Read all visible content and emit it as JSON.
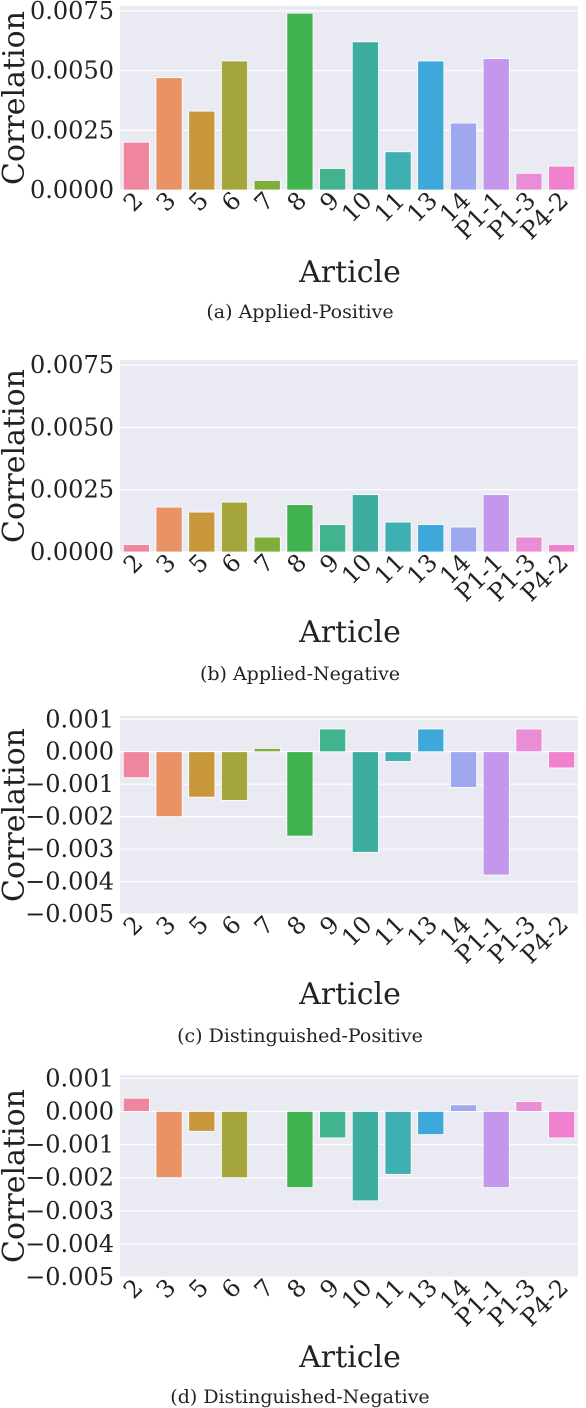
{
  "chart_data": [
    {
      "type": "bar",
      "caption": "(a) Applied-Positive",
      "xlabel": "Article",
      "ylabel": "Correlation",
      "categories": [
        "2",
        "3",
        "5",
        "6",
        "7",
        "8",
        "9",
        "10",
        "11",
        "13",
        "14",
        "P1-1",
        "P1-3",
        "P4-2"
      ],
      "values": [
        0.002,
        0.0047,
        0.0033,
        0.0054,
        0.0004,
        0.0074,
        0.0009,
        0.0062,
        0.0016,
        0.0054,
        0.0028,
        0.0055,
        0.0007,
        0.001
      ],
      "ylim": [
        0,
        0.0077
      ],
      "yticks": [
        0,
        0.0025,
        0.005,
        0.0075
      ],
      "ytick_labels": [
        "0.0000",
        "0.0025",
        "0.0050",
        "0.0075"
      ],
      "colors": [
        "#f0859f",
        "#e89266",
        "#c8973c",
        "#a4a53b",
        "#7fae3a",
        "#41b250",
        "#41b38f",
        "#3cad9f",
        "#3fb0b2",
        "#3da8d9",
        "#9fa8ee",
        "#c496ec",
        "#e98ed6",
        "#f081cf"
      ],
      "grid": true
    },
    {
      "type": "bar",
      "caption": "(b) Applied-Negative",
      "xlabel": "Article",
      "ylabel": "Correlation",
      "categories": [
        "2",
        "3",
        "5",
        "6",
        "7",
        "8",
        "9",
        "10",
        "11",
        "13",
        "14",
        "P1-1",
        "P1-3",
        "P4-2"
      ],
      "values": [
        0.0003,
        0.0018,
        0.0016,
        0.002,
        0.0006,
        0.0019,
        0.0011,
        0.0023,
        0.0012,
        0.0011,
        0.001,
        0.0023,
        0.0006,
        0.0003
      ],
      "ylim": [
        0,
        0.0077
      ],
      "yticks": [
        0,
        0.0025,
        0.005,
        0.0075
      ],
      "ytick_labels": [
        "0.0000",
        "0.0025",
        "0.0050",
        "0.0075"
      ],
      "colors": [
        "#f0859f",
        "#e89266",
        "#c8973c",
        "#a4a53b",
        "#7fae3a",
        "#41b250",
        "#41b38f",
        "#3cad9f",
        "#3fb0b2",
        "#3da8d9",
        "#9fa8ee",
        "#c496ec",
        "#e98ed6",
        "#f081cf"
      ],
      "grid": true
    },
    {
      "type": "bar",
      "caption": "(c) Distinguished-Positive",
      "xlabel": "Article",
      "ylabel": "Correlation",
      "categories": [
        "2",
        "3",
        "5",
        "6",
        "7",
        "8",
        "9",
        "10",
        "11",
        "13",
        "14",
        "P1-1",
        "P1-3",
        "P4-2"
      ],
      "values": [
        -0.0008,
        -0.002,
        -0.0014,
        -0.0015,
        0.0001,
        -0.0026,
        0.0007,
        -0.0031,
        -0.0003,
        0.0007,
        -0.0011,
        -0.0038,
        0.0007,
        -0.0005
      ],
      "ylim": [
        -0.005,
        0.0011
      ],
      "yticks": [
        0.001,
        0,
        -0.001,
        -0.002,
        -0.003,
        -0.004,
        -0.005
      ],
      "ytick_labels": [
        "0.001",
        "0.000",
        "−0.001",
        "−0.002",
        "−0.003",
        "−0.004",
        "−0.005"
      ],
      "colors": [
        "#f0859f",
        "#e89266",
        "#c8973c",
        "#a4a53b",
        "#7fae3a",
        "#41b250",
        "#41b38f",
        "#3cad9f",
        "#3fb0b2",
        "#3da8d9",
        "#9fa8ee",
        "#c496ec",
        "#e98ed6",
        "#f081cf"
      ],
      "grid": true
    },
    {
      "type": "bar",
      "caption": "(d) Distinguished-Negative",
      "xlabel": "Article",
      "ylabel": "Correlation",
      "categories": [
        "2",
        "3",
        "5",
        "6",
        "7",
        "8",
        "9",
        "10",
        "11",
        "13",
        "14",
        "P1-1",
        "P1-3",
        "P4-2"
      ],
      "values": [
        0.0004,
        -0.002,
        -0.0006,
        -0.002,
        0,
        -0.0023,
        -0.0008,
        -0.0027,
        -0.0019,
        -0.0007,
        0.0002,
        -0.0023,
        0.0003,
        -0.0008
      ],
      "ylim": [
        -0.005,
        0.0011
      ],
      "yticks": [
        0.001,
        0,
        -0.001,
        -0.002,
        -0.003,
        -0.004,
        -0.005
      ],
      "ytick_labels": [
        "0.001",
        "0.000",
        "−0.001",
        "−0.002",
        "−0.003",
        "−0.004",
        "−0.005"
      ],
      "colors": [
        "#f0859f",
        "#e89266",
        "#c8973c",
        "#a4a53b",
        "#7fae3a",
        "#41b250",
        "#41b38f",
        "#3cad9f",
        "#3fb0b2",
        "#3da8d9",
        "#9fa8ee",
        "#c496ec",
        "#e98ed6",
        "#f081cf"
      ],
      "grid": true
    }
  ]
}
